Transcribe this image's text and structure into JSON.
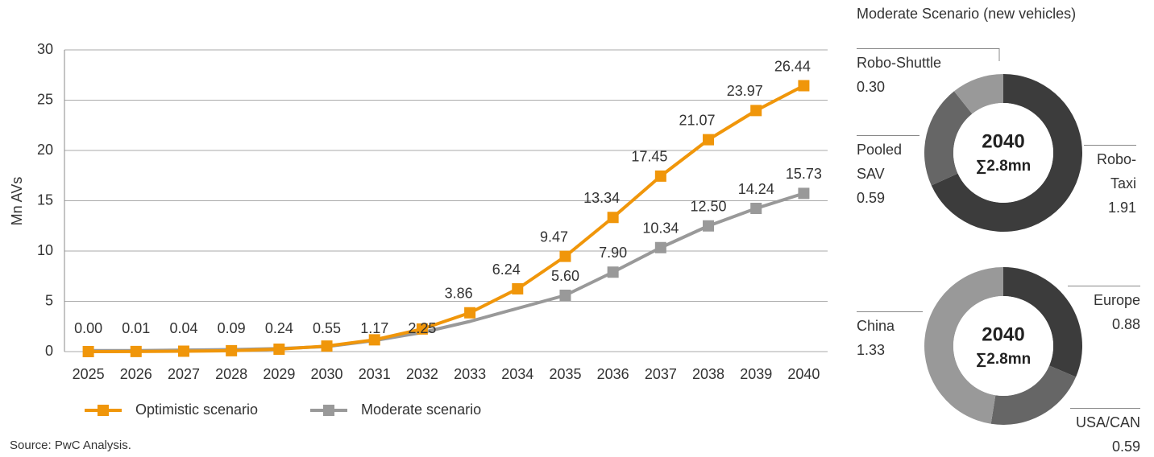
{
  "chart_data": [
    {
      "type": "line",
      "ylabel": "Mn AVs",
      "categories": [
        "2025",
        "2026",
        "2027",
        "2028",
        "2029",
        "2030",
        "2031",
        "2032",
        "2033",
        "2034",
        "2035",
        "2036",
        "2037",
        "2038",
        "2039",
        "2040"
      ],
      "series": [
        {
          "name": "Optimistic scenario",
          "color": "#f0960a",
          "values": [
            0,
            0.01,
            0.04,
            0.09,
            0.24,
            0.55,
            1.17,
            2.25,
            3.86,
            6.24,
            9.47,
            13.34,
            17.45,
            21.07,
            23.97,
            26.44
          ],
          "value_labels": [
            "0.00",
            "0.01",
            "0.04",
            "0.09",
            "0.24",
            "0.55",
            "1.17",
            "2.25",
            "3.86",
            "6.24",
            "9.47",
            "13.34",
            "17.45",
            "21.07",
            "23.97",
            "26.44"
          ]
        },
        {
          "name": "Moderate scenario",
          "color": "#999999",
          "values": [
            0.1,
            0.1,
            0.15,
            0.2,
            0.3,
            0.5,
            1.1,
            1.9,
            3.0,
            4.3,
            5.6,
            7.9,
            10.34,
            12.5,
            14.24,
            15.73
          ],
          "value_labels": [
            null,
            null,
            null,
            null,
            null,
            null,
            null,
            null,
            null,
            null,
            "5.60",
            "7.90",
            "10.34",
            "12.50",
            "14.24",
            "15.73"
          ]
        }
      ],
      "ylim": [
        0,
        30
      ],
      "yticks": [
        0,
        5,
        10,
        15,
        20,
        25,
        30
      ],
      "grid": true
    },
    {
      "type": "donut",
      "title": "Moderate Scenario (new vehicles)",
      "center_title": "2040",
      "center_label": "∑2.8mn",
      "categories": [
        "Robo-Taxi",
        "Pooled SAV",
        "Robo-Shuttle"
      ],
      "values": [
        1.91,
        0.59,
        0.3
      ],
      "value_labels": [
        "1.91",
        "0.59",
        "0.30"
      ],
      "colors": [
        "#3c3c3c",
        "#666666",
        "#999999"
      ]
    },
    {
      "type": "donut",
      "center_title": "2040",
      "center_label": "∑2.8mn",
      "categories": [
        "Europe",
        "USA/CAN",
        "China"
      ],
      "values": [
        0.88,
        0.59,
        1.33
      ],
      "colors": [
        "#3c3c3c",
        "#666666",
        "#999999"
      ]
    }
  ],
  "footer": {
    "source": "Source: PwC Analysis."
  }
}
